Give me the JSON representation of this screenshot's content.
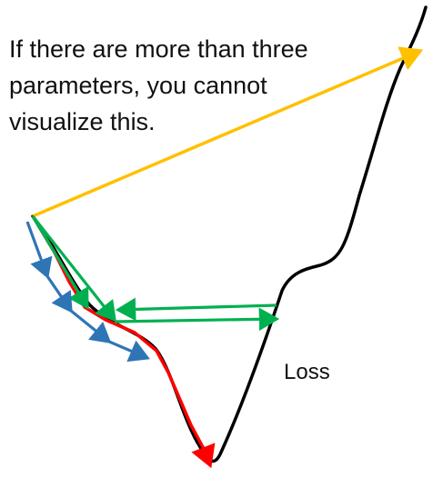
{
  "caption": {
    "lines": [
      "If there are more than three",
      "parameters, you cannot",
      "visualize this."
    ]
  },
  "labels": {
    "curve": "Loss"
  },
  "colors": {
    "curve": "#000000",
    "direct_step": "#FFC000",
    "gradient_path_red": "#FF0000",
    "gradient_path_green": "#00B050",
    "gradient_path_blue": "#2E75B6"
  }
}
